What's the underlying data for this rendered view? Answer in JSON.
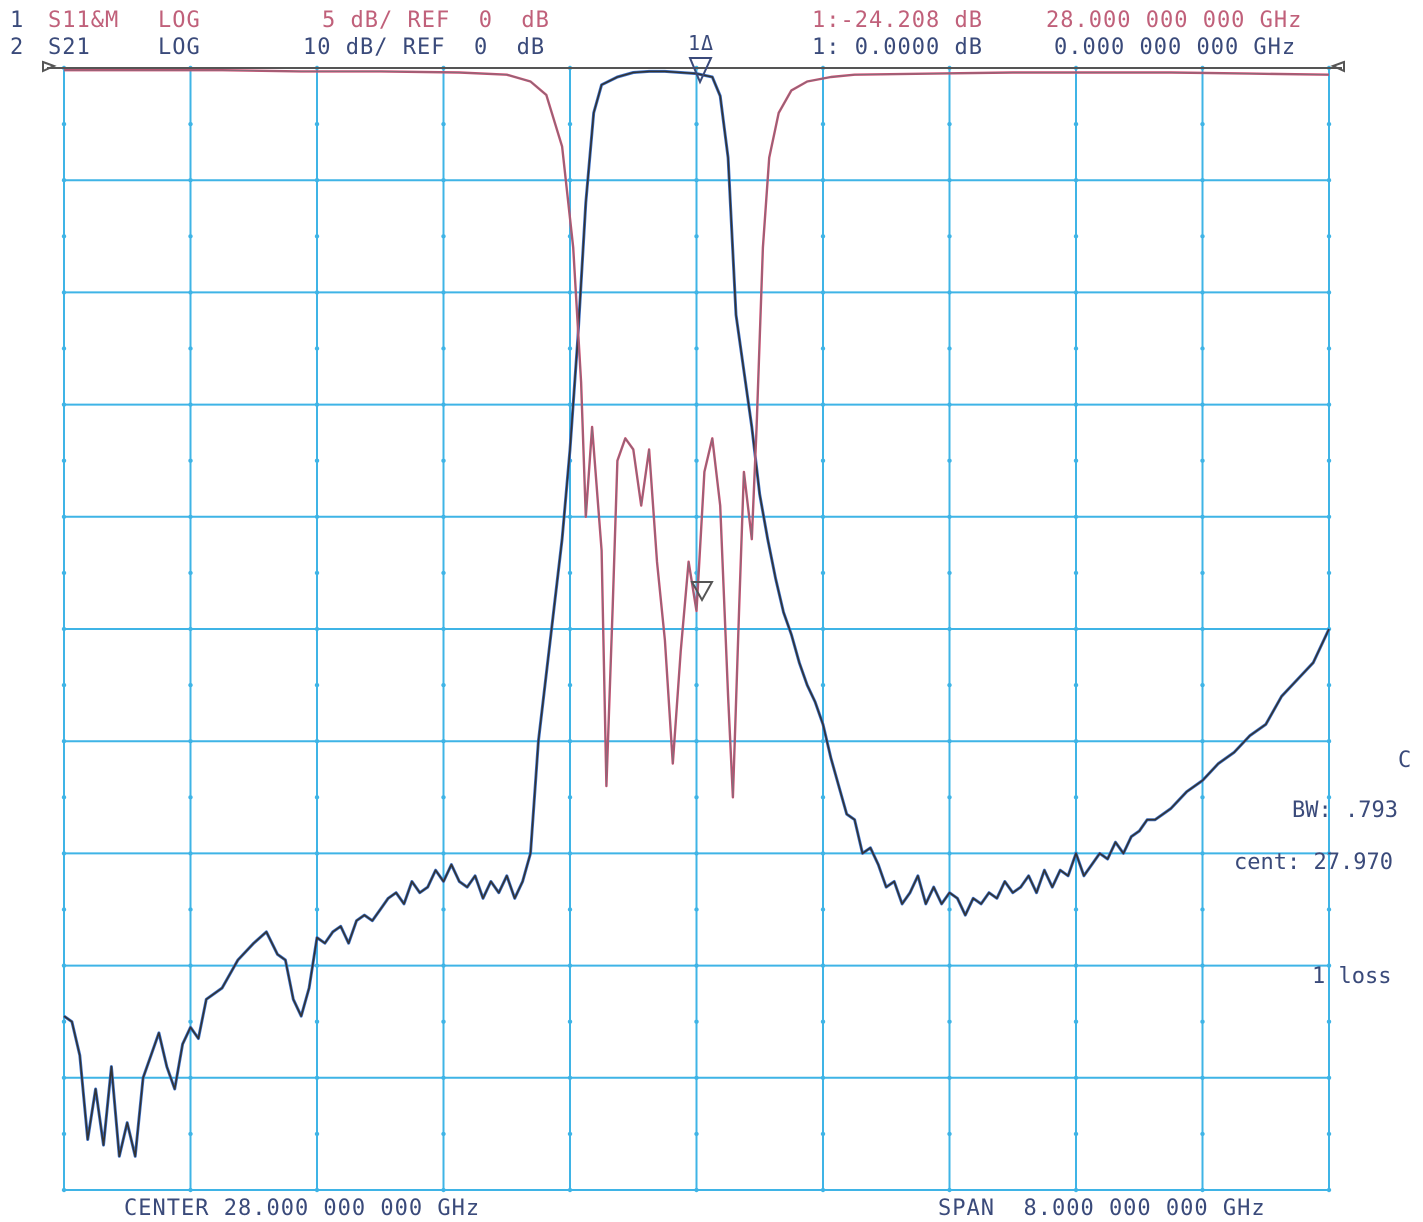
{
  "header": {
    "ch1_num": "1",
    "ch1_param": "S11&M",
    "ch1_fmt": "LOG",
    "ch1_scale": "5 dB/ REF  0  dB",
    "ch1_marker": "1:-24.208 dB",
    "ch1_freq": "28.000 000 000 GHz",
    "ch2_num": "2",
    "ch2_param": "S21",
    "ch2_fmt": "LOG",
    "ch2_scale": "10 dB/ REF  0  dB",
    "ch2_marker": "1: 0.0000 dB",
    "ch2_freq": "0.000 000 000 GHz",
    "marker_label": "1Δ"
  },
  "side_panel": {
    "bw_label": "BW: .793",
    "cent_label": "cent: 27.970",
    "loss_label": "1 loss",
    "c_label": "C"
  },
  "footer": {
    "center": "CENTER 28.000 000 000 GHz",
    "span": "SPAN  8.000 000 000 GHz"
  },
  "colors": {
    "grid": "#3fb4e6",
    "s11_trace": "#d04a70",
    "s21_trace": "#333333",
    "blue_trace": "#3a6fc8"
  },
  "chart_data": {
    "type": "line",
    "x_center_ghz": 28.0,
    "x_span_ghz": 8.0,
    "xlim": [
      24.0,
      32.0
    ],
    "grid": true,
    "grid_divisions": {
      "x": 10,
      "y": 10
    },
    "series": [
      {
        "name": "S21",
        "channel": 2,
        "scale_db_per_div": 10,
        "ref_db": 0,
        "points": [
          [
            24.0,
            -84.5
          ],
          [
            24.05,
            -85.0
          ],
          [
            24.1,
            -88.0
          ],
          [
            24.15,
            -95.5
          ],
          [
            24.2,
            -91.0
          ],
          [
            24.25,
            -96.0
          ],
          [
            24.3,
            -89.0
          ],
          [
            24.35,
            -97.0
          ],
          [
            24.4,
            -94.0
          ],
          [
            24.45,
            -97.0
          ],
          [
            24.5,
            -90.0
          ],
          [
            24.55,
            -88.0
          ],
          [
            24.6,
            -86.0
          ],
          [
            24.65,
            -89.0
          ],
          [
            24.7,
            -91.0
          ],
          [
            24.75,
            -87.0
          ],
          [
            24.8,
            -85.5
          ],
          [
            24.85,
            -86.5
          ],
          [
            24.9,
            -83.0
          ],
          [
            25.0,
            -82.0
          ],
          [
            25.1,
            -79.5
          ],
          [
            25.2,
            -78.0
          ],
          [
            25.28,
            -77.0
          ],
          [
            25.35,
            -79.0
          ],
          [
            25.4,
            -79.5
          ],
          [
            25.45,
            -83.0
          ],
          [
            25.5,
            -84.5
          ],
          [
            25.55,
            -82.0
          ],
          [
            25.6,
            -77.5
          ],
          [
            25.65,
            -78.0
          ],
          [
            25.7,
            -77.0
          ],
          [
            25.75,
            -76.5
          ],
          [
            25.8,
            -78.0
          ],
          [
            25.85,
            -76.0
          ],
          [
            25.9,
            -75.5
          ],
          [
            25.95,
            -76.0
          ],
          [
            26.0,
            -75.0
          ],
          [
            26.05,
            -74.0
          ],
          [
            26.1,
            -73.5
          ],
          [
            26.15,
            -74.5
          ],
          [
            26.2,
            -72.5
          ],
          [
            26.25,
            -73.5
          ],
          [
            26.3,
            -73.0
          ],
          [
            26.35,
            -71.5
          ],
          [
            26.4,
            -72.5
          ],
          [
            26.45,
            -71.0
          ],
          [
            26.5,
            -72.5
          ],
          [
            26.55,
            -73.0
          ],
          [
            26.6,
            -72.0
          ],
          [
            26.65,
            -74.0
          ],
          [
            26.7,
            -72.5
          ],
          [
            26.75,
            -73.5
          ],
          [
            26.8,
            -72.0
          ],
          [
            26.85,
            -74.0
          ],
          [
            26.9,
            -72.5
          ],
          [
            26.95,
            -70.0
          ],
          [
            27.0,
            -60.0
          ],
          [
            27.05,
            -54.0
          ],
          [
            27.1,
            -48.0
          ],
          [
            27.15,
            -42.0
          ],
          [
            27.2,
            -34.0
          ],
          [
            27.25,
            -24.0
          ],
          [
            27.3,
            -12.0
          ],
          [
            27.35,
            -4.0
          ],
          [
            27.4,
            -1.5
          ],
          [
            27.5,
            -0.8
          ],
          [
            27.6,
            -0.4
          ],
          [
            27.7,
            -0.3
          ],
          [
            27.8,
            -0.3
          ],
          [
            27.9,
            -0.4
          ],
          [
            28.0,
            -0.5
          ],
          [
            28.1,
            -0.8
          ],
          [
            28.15,
            -2.5
          ],
          [
            28.2,
            -8.0
          ],
          [
            28.25,
            -22.0
          ],
          [
            28.3,
            -27.0
          ],
          [
            28.35,
            -32.0
          ],
          [
            28.4,
            -38.0
          ],
          [
            28.45,
            -42.0
          ],
          [
            28.5,
            -45.5
          ],
          [
            28.55,
            -48.5
          ],
          [
            28.6,
            -50.5
          ],
          [
            28.65,
            -53.0
          ],
          [
            28.7,
            -55.0
          ],
          [
            28.75,
            -56.5
          ],
          [
            28.8,
            -58.5
          ],
          [
            28.85,
            -61.5
          ],
          [
            28.9,
            -64.0
          ],
          [
            28.95,
            -66.5
          ],
          [
            29.0,
            -67.0
          ],
          [
            29.05,
            -70.0
          ],
          [
            29.1,
            -69.5
          ],
          [
            29.15,
            -71.0
          ],
          [
            29.2,
            -73.0
          ],
          [
            29.25,
            -72.5
          ],
          [
            29.3,
            -74.5
          ],
          [
            29.35,
            -73.5
          ],
          [
            29.4,
            -72.0
          ],
          [
            29.45,
            -74.5
          ],
          [
            29.5,
            -73.0
          ],
          [
            29.55,
            -74.5
          ],
          [
            29.6,
            -73.5
          ],
          [
            29.65,
            -74.0
          ],
          [
            29.7,
            -75.5
          ],
          [
            29.75,
            -74.0
          ],
          [
            29.8,
            -74.5
          ],
          [
            29.85,
            -73.5
          ],
          [
            29.9,
            -74.0
          ],
          [
            29.95,
            -72.5
          ],
          [
            30.0,
            -73.5
          ],
          [
            30.05,
            -73.0
          ],
          [
            30.1,
            -72.0
          ],
          [
            30.15,
            -73.5
          ],
          [
            30.2,
            -71.5
          ],
          [
            30.25,
            -73.0
          ],
          [
            30.3,
            -71.5
          ],
          [
            30.35,
            -72.0
          ],
          [
            30.4,
            -70.0
          ],
          [
            30.45,
            -72.0
          ],
          [
            30.5,
            -71.0
          ],
          [
            30.55,
            -70.0
          ],
          [
            30.6,
            -70.5
          ],
          [
            30.65,
            -69.0
          ],
          [
            30.7,
            -70.0
          ],
          [
            30.75,
            -68.5
          ],
          [
            30.8,
            -68.0
          ],
          [
            30.85,
            -67.0
          ],
          [
            30.9,
            -67.0
          ],
          [
            30.95,
            -66.5
          ],
          [
            31.0,
            -66.0
          ],
          [
            31.1,
            -64.5
          ],
          [
            31.2,
            -63.5
          ],
          [
            31.3,
            -62.0
          ],
          [
            31.4,
            -61.0
          ],
          [
            31.5,
            -59.5
          ],
          [
            31.6,
            -58.5
          ],
          [
            31.7,
            -56.0
          ],
          [
            31.8,
            -54.5
          ],
          [
            31.9,
            -53.0
          ],
          [
            32.0,
            -50.0
          ]
        ]
      },
      {
        "name": "S11",
        "channel": 1,
        "scale_db_per_div": 5,
        "ref_db": 0,
        "points": [
          [
            24.0,
            -0.1
          ],
          [
            24.5,
            -0.1
          ],
          [
            25.0,
            -0.1
          ],
          [
            25.5,
            -0.15
          ],
          [
            26.0,
            -0.15
          ],
          [
            26.5,
            -0.2
          ],
          [
            26.8,
            -0.3
          ],
          [
            26.95,
            -0.6
          ],
          [
            27.05,
            -1.2
          ],
          [
            27.15,
            -3.5
          ],
          [
            27.22,
            -8.0
          ],
          [
            27.27,
            -14.0
          ],
          [
            27.3,
            -20.0
          ],
          [
            27.34,
            -16.0
          ],
          [
            27.4,
            -21.5
          ],
          [
            27.43,
            -32.0
          ],
          [
            27.47,
            -24.0
          ],
          [
            27.5,
            -17.5
          ],
          [
            27.55,
            -16.5
          ],
          [
            27.6,
            -17.0
          ],
          [
            27.65,
            -19.5
          ],
          [
            27.7,
            -17.0
          ],
          [
            27.75,
            -22.0
          ],
          [
            27.8,
            -25.5
          ],
          [
            27.85,
            -31.0
          ],
          [
            27.9,
            -26.0
          ],
          [
            27.95,
            -22.0
          ],
          [
            28.0,
            -24.2
          ],
          [
            28.05,
            -18.0
          ],
          [
            28.1,
            -16.5
          ],
          [
            28.15,
            -19.5
          ],
          [
            28.2,
            -28.0
          ],
          [
            28.23,
            -32.5
          ],
          [
            28.27,
            -24.0
          ],
          [
            28.3,
            -18.0
          ],
          [
            28.35,
            -21.0
          ],
          [
            28.38,
            -16.0
          ],
          [
            28.42,
            -8.0
          ],
          [
            28.46,
            -4.0
          ],
          [
            28.52,
            -2.0
          ],
          [
            28.6,
            -1.0
          ],
          [
            28.7,
            -0.6
          ],
          [
            28.85,
            -0.4
          ],
          [
            29.0,
            -0.3
          ],
          [
            29.5,
            -0.25
          ],
          [
            30.0,
            -0.2
          ],
          [
            30.5,
            -0.2
          ],
          [
            31.0,
            -0.2
          ],
          [
            31.5,
            -0.25
          ],
          [
            32.0,
            -0.3
          ]
        ]
      }
    ]
  }
}
